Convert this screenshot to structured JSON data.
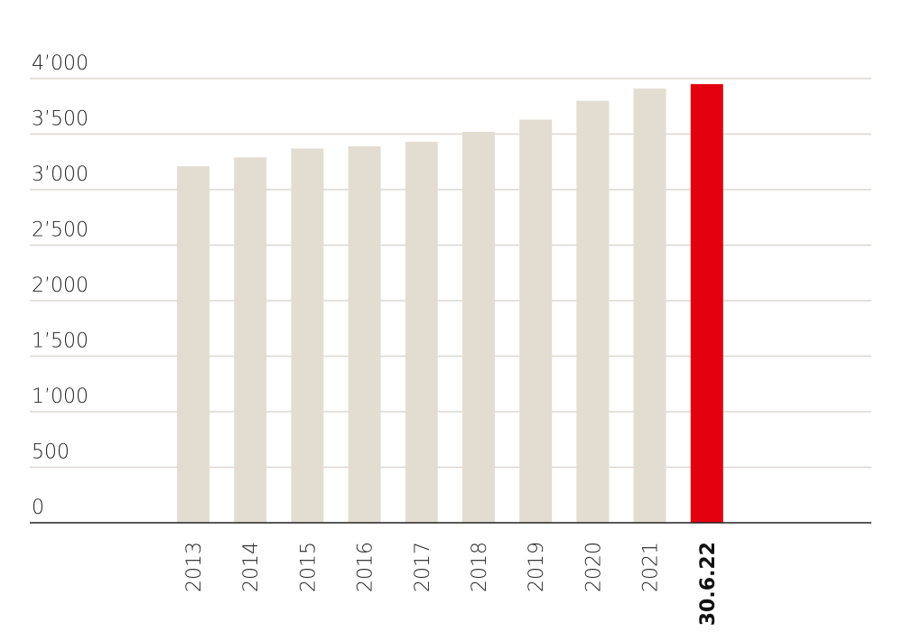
{
  "chart_data": {
    "type": "bar",
    "categories": [
      "2013",
      "2014",
      "2015",
      "2016",
      "2017",
      "2018",
      "2019",
      "2020",
      "2021",
      "30.6.22"
    ],
    "values": [
      3210,
      3290,
      3370,
      3390,
      3430,
      3520,
      3630,
      3800,
      3910,
      3950
    ],
    "colors": [
      "#e3ddd1",
      "#e3ddd1",
      "#e3ddd1",
      "#e3ddd1",
      "#e3ddd1",
      "#e3ddd1",
      "#e3ddd1",
      "#e3ddd1",
      "#e3ddd1",
      "#e2000f"
    ],
    "ylim": [
      0,
      4000
    ],
    "yticks": [
      0,
      500,
      {
        "value": 1000,
        "label": "1’000"
      },
      {
        "value": 1500,
        "label": "1’500"
      },
      {
        "value": 2000,
        "label": "2’000"
      },
      {
        "value": 2500,
        "label": "2’500"
      },
      {
        "value": 3000,
        "label": "3’000"
      },
      {
        "value": 3500,
        "label": "3’500"
      },
      {
        "value": 4000,
        "label": "4’000"
      }
    ],
    "grid": true
  }
}
